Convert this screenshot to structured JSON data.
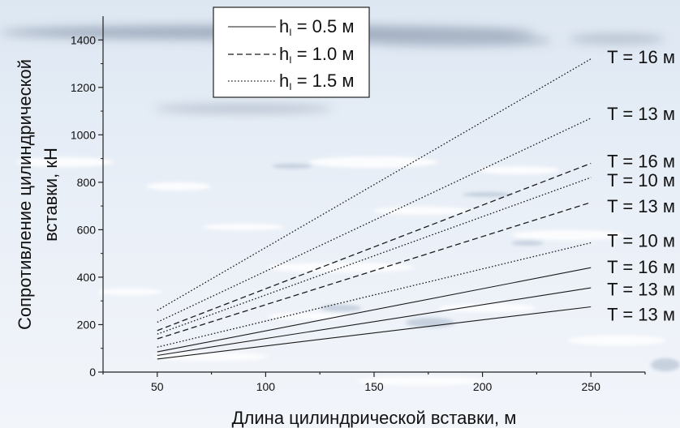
{
  "chart_data": {
    "type": "line",
    "xlabel": "Длина цилиндрической вставки, м",
    "ylabel_lines": [
      "Сопротивление цилиндрической",
      "вставки, кН"
    ],
    "xlim": [
      25,
      275
    ],
    "ylim": [
      0,
      1500
    ],
    "x_ticks": [
      50,
      100,
      150,
      200,
      250
    ],
    "y_ticks": [
      0,
      200,
      400,
      600,
      800,
      1000,
      1200,
      1400
    ],
    "grid": false,
    "legend_position": "top-center",
    "legend": [
      {
        "main": "h",
        "sub": "I",
        "rest": " = 0.5 м",
        "style": "solid"
      },
      {
        "main": "h",
        "sub": "I",
        "rest": " = 1.0 м",
        "style": "dashed"
      },
      {
        "main": "h",
        "sub": "I",
        "rest": " = 1.5 м",
        "style": "dotted"
      }
    ],
    "series": [
      {
        "style": "solid",
        "x": [
          50,
          250
        ],
        "y": [
          55,
          275
        ]
      },
      {
        "style": "solid",
        "x": [
          50,
          250
        ],
        "y": [
          70,
          355
        ]
      },
      {
        "style": "solid",
        "x": [
          50,
          250
        ],
        "y": [
          85,
          440
        ]
      },
      {
        "style": "dotted",
        "x": [
          50,
          250
        ],
        "y": [
          105,
          545
        ]
      },
      {
        "style": "dashed",
        "x": [
          50,
          250
        ],
        "y": [
          140,
          715
        ]
      },
      {
        "style": "dotted",
        "x": [
          50,
          250
        ],
        "y": [
          160,
          820
        ]
      },
      {
        "style": "dashed",
        "x": [
          50,
          250
        ],
        "y": [
          175,
          880
        ]
      },
      {
        "style": "dotted",
        "x": [
          50,
          250
        ],
        "y": [
          210,
          1070
        ]
      },
      {
        "style": "dotted",
        "x": [
          50,
          250
        ],
        "y": [
          260,
          1320
        ]
      }
    ],
    "annotations": [
      {
        "text": "T = 16 м",
        "y": 1330
      },
      {
        "text": "T = 13 м",
        "y": 1090
      },
      {
        "text": "T = 16 м",
        "y": 890
      },
      {
        "text": "T = 10 м",
        "y": 810
      },
      {
        "text": "T = 13 м",
        "y": 700
      },
      {
        "text": "T = 10 м",
        "y": 555
      },
      {
        "text": "T = 16 м",
        "y": 445
      },
      {
        "text": "T = 13 м",
        "y": 350
      },
      {
        "text": "T = 13 м",
        "y": 245
      }
    ]
  }
}
